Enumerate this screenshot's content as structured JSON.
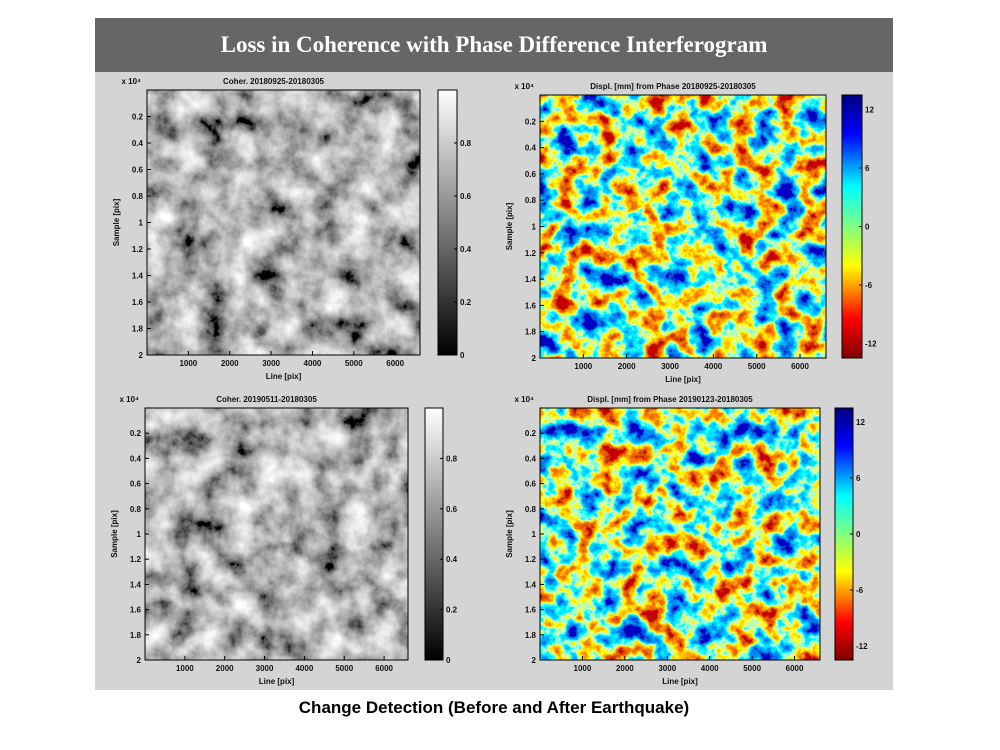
{
  "title": "Loss in Coherence with Phase Difference Interferogram",
  "caption": "Change Detection (Before and After Earthquake)",
  "chart_data": [
    {
      "type": "image",
      "title": "Coher. 20180925-20180305",
      "x_label": "Line [pix]",
      "y_label": "Sample [pix]",
      "y_offset_text": "x 10⁴",
      "xlim": [
        0,
        6600
      ],
      "xticks": [
        1000,
        2000,
        3000,
        4000,
        5000,
        6000
      ],
      "ylim": [
        0,
        2
      ],
      "yticks": [
        0.2,
        0.4,
        0.6,
        0.8,
        1,
        1.2,
        1.4,
        1.6,
        1.8,
        2
      ],
      "colormap": "gray",
      "clim": [
        0,
        1
      ],
      "cticks": [
        0,
        0.2,
        0.4,
        0.6,
        0.8
      ]
    },
    {
      "type": "image",
      "title": "Displ. [mm] from Phase 20180925-20180305",
      "x_label": "Line [pix]",
      "y_label": "Sample [pix]",
      "y_offset_text": "x 10⁴",
      "xlim": [
        0,
        6600
      ],
      "xticks": [
        1000,
        2000,
        3000,
        4000,
        5000,
        6000
      ],
      "ylim": [
        0,
        2
      ],
      "yticks": [
        0.2,
        0.4,
        0.6,
        0.8,
        1,
        1.2,
        1.4,
        1.6,
        1.8,
        2
      ],
      "colormap": "jet",
      "clim": [
        -13.5,
        13.5
      ],
      "cticks": [
        -12,
        -6,
        0,
        6,
        12
      ]
    },
    {
      "type": "image",
      "title": "Coher. 20190511-20180305",
      "x_label": "Line [pix]",
      "y_label": "Sample [pix]",
      "y_offset_text": "x 10⁴",
      "xlim": [
        0,
        6600
      ],
      "xticks": [
        1000,
        2000,
        3000,
        4000,
        5000,
        6000
      ],
      "ylim": [
        0,
        2
      ],
      "yticks": [
        0.2,
        0.4,
        0.6,
        0.8,
        1,
        1.2,
        1.4,
        1.6,
        1.8,
        2
      ],
      "colormap": "gray",
      "clim": [
        0,
        1
      ],
      "cticks": [
        0,
        0.2,
        0.4,
        0.6,
        0.8
      ]
    },
    {
      "type": "image",
      "title": "Displ. [mm] from Phase 20190123-20180305",
      "x_label": "Line [pix]",
      "y_label": "Sample [pix]",
      "y_offset_text": "x 10⁴",
      "xlim": [
        0,
        6600
      ],
      "xticks": [
        1000,
        2000,
        3000,
        4000,
        5000,
        6000
      ],
      "ylim": [
        0,
        2
      ],
      "yticks": [
        0.2,
        0.4,
        0.6,
        0.8,
        1,
        1.2,
        1.4,
        1.6,
        1.8,
        2
      ],
      "colormap": "jet",
      "clim": [
        -13.5,
        13.5
      ],
      "cticks": [
        -12,
        -6,
        0,
        6,
        12
      ]
    }
  ]
}
